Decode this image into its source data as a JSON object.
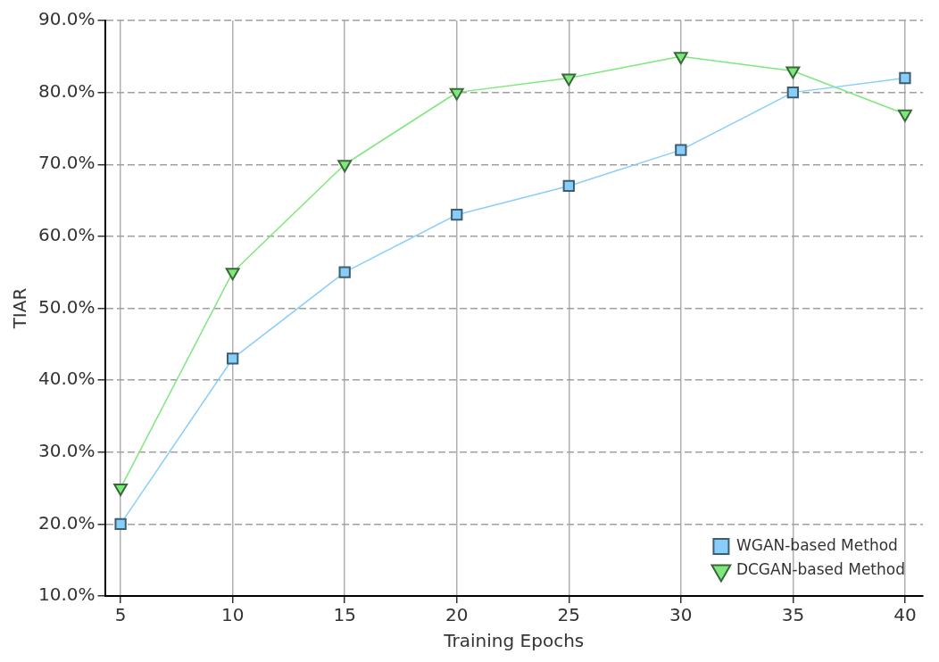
{
  "chart_data": {
    "type": "line",
    "xlabel": "Training Epochs",
    "ylabel": "TIAR",
    "x": [
      5,
      10,
      15,
      20,
      25,
      30,
      35,
      40
    ],
    "series": [
      {
        "name": "WGAN-based Method",
        "color": "#87cefa",
        "marker": "square",
        "values": [
          20,
          43,
          55,
          63,
          67,
          72,
          80,
          82
        ]
      },
      {
        "name": "DCGAN-based Method",
        "color": "#7ee87e",
        "marker": "triangle_down",
        "values": [
          25,
          55,
          70,
          80,
          82,
          85,
          83,
          77
        ]
      }
    ],
    "xlim": [
      4.3,
      40.8
    ],
    "xticks": [
      5,
      10,
      15,
      20,
      25,
      30,
      35,
      40
    ],
    "ylim": [
      10,
      90
    ],
    "yticks": [
      {
        "value": 10,
        "label": "10.0%"
      },
      {
        "value": 20,
        "label": "20.0%"
      },
      {
        "value": 30,
        "label": "30.0%"
      },
      {
        "value": 40,
        "label": "40.0%"
      },
      {
        "value": 50,
        "label": "50.0%"
      },
      {
        "value": 60,
        "label": "60.0%"
      },
      {
        "value": 70,
        "label": "70.0%"
      },
      {
        "value": 80,
        "label": "80.0%"
      },
      {
        "value": 90,
        "label": "90.0%"
      }
    ],
    "grid": true,
    "legend": "bottom right",
    "line_style": "solid"
  }
}
